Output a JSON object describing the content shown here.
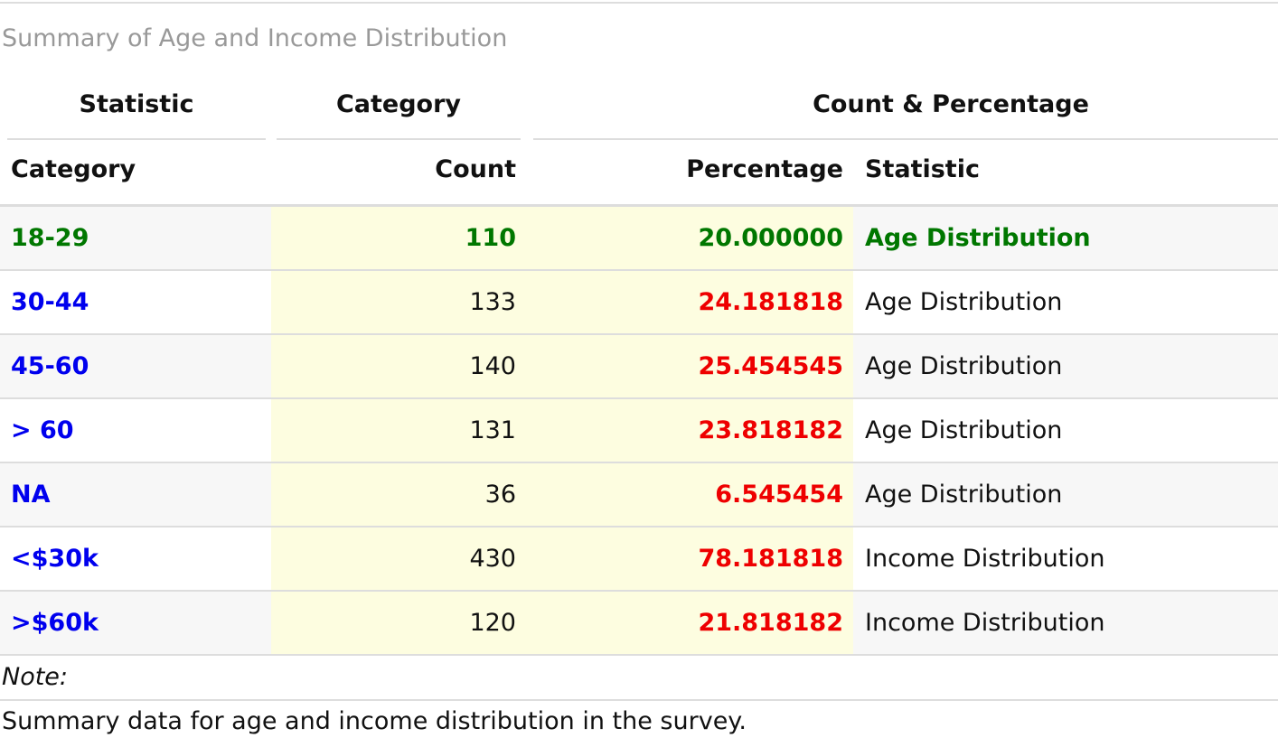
{
  "caption": "Summary of Age and Income Distribution",
  "group_headers": [
    "Statistic",
    "Category",
    "Count & Percentage"
  ],
  "columns": [
    "Category",
    "Count",
    "Percentage",
    "Statistic"
  ],
  "rows": [
    {
      "category": "18-29",
      "count": "110",
      "percentage": "20.000000",
      "statistic": "Age Distribution"
    },
    {
      "category": "30-44",
      "count": "133",
      "percentage": "24.181818",
      "statistic": "Age Distribution"
    },
    {
      "category": "45-60",
      "count": "140",
      "percentage": "25.454545",
      "statistic": "Age Distribution"
    },
    {
      "category": "> 60",
      "count": "131",
      "percentage": "23.818182",
      "statistic": "Age Distribution"
    },
    {
      "category": "NA",
      "count": "36",
      "percentage": "6.545454",
      "statistic": "Age Distribution"
    },
    {
      "category": "<$30k",
      "count": "430",
      "percentage": "78.181818",
      "statistic": "Income Distribution"
    },
    {
      "category": ">$60k",
      "count": "120",
      "percentage": "21.818182",
      "statistic": "Income Distribution"
    }
  ],
  "footnote": {
    "label": "Note:",
    "text": "Summary data for age and income distribution in the survey."
  },
  "colors": {
    "highlight_row": "#007700",
    "category_text": "#0000ee",
    "percentage_text": "#ee0000",
    "count_column_bg": "#fdfde0",
    "stripe_bg": "#f7f7f7",
    "caption_text": "#999999"
  }
}
